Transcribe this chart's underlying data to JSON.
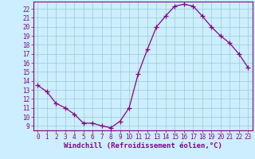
{
  "x": [
    0,
    1,
    2,
    3,
    4,
    5,
    6,
    7,
    8,
    9,
    10,
    11,
    12,
    13,
    14,
    15,
    16,
    17,
    18,
    19,
    20,
    21,
    22,
    23
  ],
  "y": [
    13.5,
    12.8,
    11.5,
    11.0,
    10.3,
    9.3,
    9.3,
    9.0,
    8.8,
    9.5,
    11.0,
    14.8,
    17.5,
    20.0,
    21.2,
    22.3,
    22.5,
    22.3,
    21.2,
    20.0,
    19.0,
    18.2,
    17.0,
    15.5
  ],
  "line_color": "#880088",
  "marker": "+",
  "markersize": 4,
  "linewidth": 0.9,
  "bg_color": "#cceeff",
  "grid_color": "#99cccc",
  "xlabel": "Windchill (Refroidissement éolien,°C)",
  "xlim": [
    -0.5,
    23.5
  ],
  "ylim": [
    8.5,
    22.8
  ],
  "yticks": [
    9,
    10,
    11,
    12,
    13,
    14,
    15,
    16,
    17,
    18,
    19,
    20,
    21,
    22
  ],
  "xticks": [
    0,
    1,
    2,
    3,
    4,
    5,
    6,
    7,
    8,
    9,
    10,
    11,
    12,
    13,
    14,
    15,
    16,
    17,
    18,
    19,
    20,
    21,
    22,
    23
  ],
  "tick_fontsize": 5.5,
  "xlabel_fontsize": 6.5,
  "text_color": "#880088",
  "spine_color": "#880088"
}
